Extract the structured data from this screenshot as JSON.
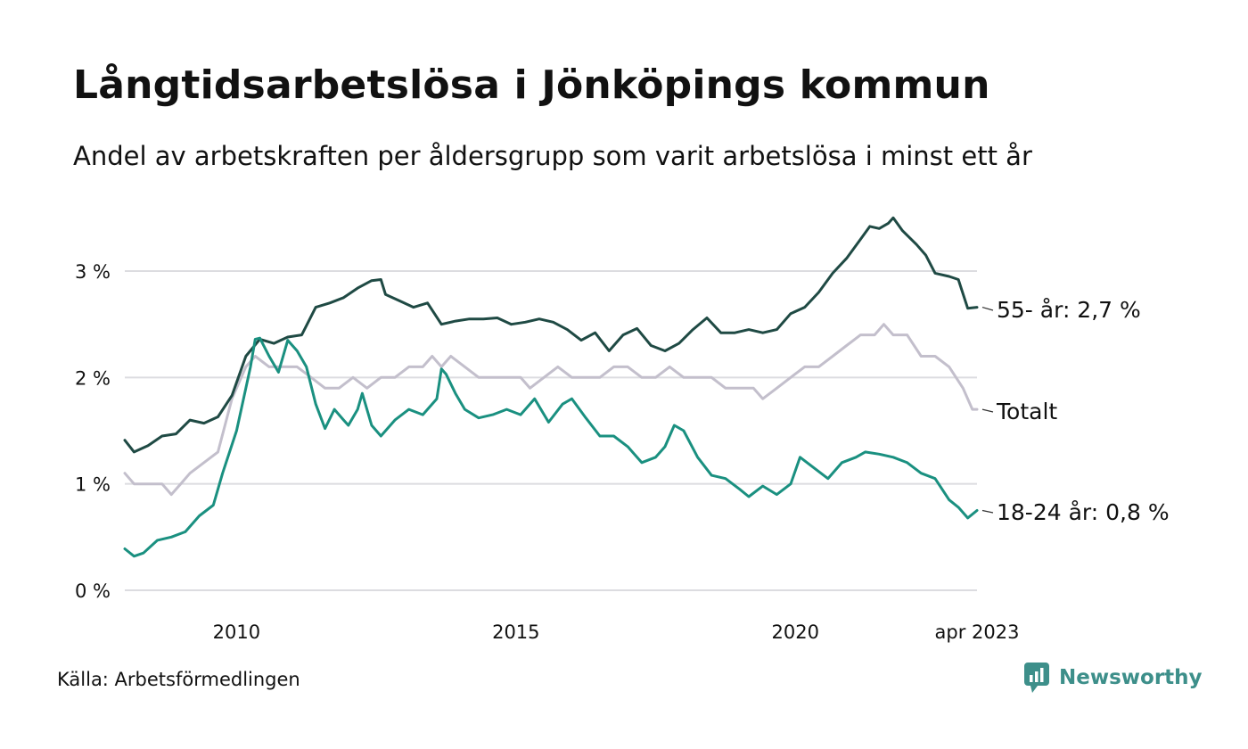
{
  "header": {
    "title": "Långtidsarbetslösa i Jönköpings kommun",
    "subtitle": "Andel av arbetskraften per åldersgrupp som varit arbetslösa i minst ett år"
  },
  "footer": {
    "source": "Källa: Arbetsförmedlingen",
    "brand": "Newsworthy",
    "brand_icon": "newsworthy-logo-icon",
    "brand_color": "#3d8f8a"
  },
  "chart_data": {
    "type": "line",
    "x_range": [
      "2008-01",
      "2023-04"
    ],
    "y_range": [
      0,
      3.6
    ],
    "y_ticks": [
      {
        "value": 0,
        "label": "0 %"
      },
      {
        "value": 1,
        "label": "1 %"
      },
      {
        "value": 2,
        "label": "2 %"
      },
      {
        "value": 3,
        "label": "3 %"
      }
    ],
    "x_ticks": [
      {
        "date": "2010-01",
        "label": "2010"
      },
      {
        "date": "2015-01",
        "label": "2015"
      },
      {
        "date": "2020-01",
        "label": "2020"
      },
      {
        "date": "2023-04",
        "label": "apr 2023"
      }
    ],
    "grid": "horizontal",
    "series": [
      {
        "name": "Totalt",
        "end_label": "Totalt",
        "color": "#c3bfcc",
        "points": [
          [
            "2008-01",
            1.1
          ],
          [
            "2008-03",
            1.0
          ],
          [
            "2008-06",
            1.0
          ],
          [
            "2008-09",
            1.0
          ],
          [
            "2008-11",
            0.9
          ],
          [
            "2009-01",
            1.0
          ],
          [
            "2009-03",
            1.1
          ],
          [
            "2009-06",
            1.2
          ],
          [
            "2009-09",
            1.3
          ],
          [
            "2009-12",
            1.8
          ],
          [
            "2010-03",
            2.1
          ],
          [
            "2010-05",
            2.2
          ],
          [
            "2010-08",
            2.1
          ],
          [
            "2010-11",
            2.1
          ],
          [
            "2011-02",
            2.1
          ],
          [
            "2011-05",
            2.0
          ],
          [
            "2011-08",
            1.9
          ],
          [
            "2011-11",
            1.9
          ],
          [
            "2012-02",
            2.0
          ],
          [
            "2012-05",
            1.9
          ],
          [
            "2012-08",
            2.0
          ],
          [
            "2012-11",
            2.0
          ],
          [
            "2013-02",
            2.1
          ],
          [
            "2013-05",
            2.1
          ],
          [
            "2013-07",
            2.2
          ],
          [
            "2013-09",
            2.1
          ],
          [
            "2013-11",
            2.2
          ],
          [
            "2014-02",
            2.1
          ],
          [
            "2014-05",
            2.0
          ],
          [
            "2014-08",
            2.0
          ],
          [
            "2014-11",
            2.0
          ],
          [
            "2015-02",
            2.0
          ],
          [
            "2015-04",
            1.9
          ],
          [
            "2015-07",
            2.0
          ],
          [
            "2015-10",
            2.1
          ],
          [
            "2016-01",
            2.0
          ],
          [
            "2016-04",
            2.0
          ],
          [
            "2016-07",
            2.0
          ],
          [
            "2016-10",
            2.1
          ],
          [
            "2017-01",
            2.1
          ],
          [
            "2017-04",
            2.0
          ],
          [
            "2017-07",
            2.0
          ],
          [
            "2017-10",
            2.1
          ],
          [
            "2018-01",
            2.0
          ],
          [
            "2018-04",
            2.0
          ],
          [
            "2018-07",
            2.0
          ],
          [
            "2018-10",
            1.9
          ],
          [
            "2019-01",
            1.9
          ],
          [
            "2019-04",
            1.9
          ],
          [
            "2019-06",
            1.8
          ],
          [
            "2019-09",
            1.9
          ],
          [
            "2019-12",
            2.0
          ],
          [
            "2020-03",
            2.1
          ],
          [
            "2020-06",
            2.1
          ],
          [
            "2020-09",
            2.2
          ],
          [
            "2020-12",
            2.3
          ],
          [
            "2021-03",
            2.4
          ],
          [
            "2021-06",
            2.4
          ],
          [
            "2021-08",
            2.5
          ],
          [
            "2021-10",
            2.4
          ],
          [
            "2022-01",
            2.4
          ],
          [
            "2022-04",
            2.2
          ],
          [
            "2022-07",
            2.2
          ],
          [
            "2022-10",
            2.1
          ],
          [
            "2023-01",
            1.9
          ],
          [
            "2023-03",
            1.7
          ],
          [
            "2023-04",
            1.7
          ]
        ]
      },
      {
        "name": "55- år",
        "end_label": "55- år: 2,7 %",
        "color": "#1f4a44",
        "points": [
          [
            "2008-01",
            1.41
          ],
          [
            "2008-03",
            1.3
          ],
          [
            "2008-06",
            1.36
          ],
          [
            "2008-09",
            1.45
          ],
          [
            "2008-12",
            1.47
          ],
          [
            "2009-03",
            1.6
          ],
          [
            "2009-06",
            1.57
          ],
          [
            "2009-09",
            1.63
          ],
          [
            "2009-12",
            1.83
          ],
          [
            "2010-03",
            2.2
          ],
          [
            "2010-06",
            2.36
          ],
          [
            "2010-09",
            2.32
          ],
          [
            "2010-12",
            2.38
          ],
          [
            "2011-03",
            2.4
          ],
          [
            "2011-06",
            2.66
          ],
          [
            "2011-09",
            2.7
          ],
          [
            "2011-12",
            2.75
          ],
          [
            "2012-03",
            2.84
          ],
          [
            "2012-06",
            2.91
          ],
          [
            "2012-08",
            2.92
          ],
          [
            "2012-09",
            2.78
          ],
          [
            "2012-12",
            2.72
          ],
          [
            "2013-03",
            2.66
          ],
          [
            "2013-06",
            2.7
          ],
          [
            "2013-09",
            2.5
          ],
          [
            "2013-12",
            2.53
          ],
          [
            "2014-03",
            2.55
          ],
          [
            "2014-06",
            2.55
          ],
          [
            "2014-09",
            2.56
          ],
          [
            "2014-12",
            2.5
          ],
          [
            "2015-03",
            2.52
          ],
          [
            "2015-06",
            2.55
          ],
          [
            "2015-09",
            2.52
          ],
          [
            "2015-12",
            2.45
          ],
          [
            "2016-03",
            2.35
          ],
          [
            "2016-06",
            2.42
          ],
          [
            "2016-09",
            2.25
          ],
          [
            "2016-12",
            2.4
          ],
          [
            "2017-03",
            2.46
          ],
          [
            "2017-06",
            2.3
          ],
          [
            "2017-09",
            2.25
          ],
          [
            "2017-12",
            2.32
          ],
          [
            "2018-03",
            2.45
          ],
          [
            "2018-06",
            2.56
          ],
          [
            "2018-09",
            2.42
          ],
          [
            "2018-12",
            2.42
          ],
          [
            "2019-03",
            2.45
          ],
          [
            "2019-06",
            2.42
          ],
          [
            "2019-09",
            2.45
          ],
          [
            "2019-12",
            2.6
          ],
          [
            "2020-03",
            2.66
          ],
          [
            "2020-06",
            2.8
          ],
          [
            "2020-09",
            2.98
          ],
          [
            "2020-12",
            3.12
          ],
          [
            "2021-03",
            3.3
          ],
          [
            "2021-05",
            3.42
          ],
          [
            "2021-07",
            3.4
          ],
          [
            "2021-09",
            3.45
          ],
          [
            "2021-10",
            3.5
          ],
          [
            "2021-12",
            3.38
          ],
          [
            "2022-03",
            3.25
          ],
          [
            "2022-05",
            3.15
          ],
          [
            "2022-07",
            2.98
          ],
          [
            "2022-10",
            2.95
          ],
          [
            "2022-12",
            2.92
          ],
          [
            "2023-02",
            2.65
          ],
          [
            "2023-04",
            2.66
          ]
        ]
      },
      {
        "name": "18-24 år",
        "end_label": "18-24 år: 0,8 %",
        "color": "#1a9080",
        "points": [
          [
            "2008-01",
            0.39
          ],
          [
            "2008-03",
            0.32
          ],
          [
            "2008-05",
            0.35
          ],
          [
            "2008-08",
            0.47
          ],
          [
            "2008-11",
            0.5
          ],
          [
            "2009-02",
            0.55
          ],
          [
            "2009-05",
            0.7
          ],
          [
            "2009-08",
            0.8
          ],
          [
            "2009-10",
            1.1
          ],
          [
            "2010-01",
            1.5
          ],
          [
            "2010-04",
            2.1
          ],
          [
            "2010-05",
            2.36
          ],
          [
            "2010-06",
            2.37
          ],
          [
            "2010-08",
            2.2
          ],
          [
            "2010-10",
            2.05
          ],
          [
            "2010-12",
            2.35
          ],
          [
            "2011-02",
            2.25
          ],
          [
            "2011-04",
            2.1
          ],
          [
            "2011-06",
            1.75
          ],
          [
            "2011-08",
            1.52
          ],
          [
            "2011-10",
            1.7
          ],
          [
            "2011-12",
            1.6
          ],
          [
            "2012-01",
            1.55
          ],
          [
            "2012-03",
            1.7
          ],
          [
            "2012-04",
            1.85
          ],
          [
            "2012-06",
            1.55
          ],
          [
            "2012-08",
            1.45
          ],
          [
            "2012-11",
            1.6
          ],
          [
            "2013-02",
            1.7
          ],
          [
            "2013-05",
            1.65
          ],
          [
            "2013-08",
            1.8
          ],
          [
            "2013-09",
            2.08
          ],
          [
            "2013-10",
            2.03
          ],
          [
            "2013-12",
            1.85
          ],
          [
            "2014-02",
            1.7
          ],
          [
            "2014-05",
            1.62
          ],
          [
            "2014-08",
            1.65
          ],
          [
            "2014-11",
            1.7
          ],
          [
            "2015-02",
            1.65
          ],
          [
            "2015-05",
            1.8
          ],
          [
            "2015-08",
            1.58
          ],
          [
            "2015-11",
            1.75
          ],
          [
            "2016-01",
            1.8
          ],
          [
            "2016-04",
            1.62
          ],
          [
            "2016-07",
            1.45
          ],
          [
            "2016-10",
            1.45
          ],
          [
            "2017-01",
            1.35
          ],
          [
            "2017-04",
            1.2
          ],
          [
            "2017-07",
            1.25
          ],
          [
            "2017-09",
            1.35
          ],
          [
            "2017-11",
            1.55
          ],
          [
            "2018-01",
            1.5
          ],
          [
            "2018-04",
            1.25
          ],
          [
            "2018-07",
            1.08
          ],
          [
            "2018-10",
            1.05
          ],
          [
            "2019-01",
            0.95
          ],
          [
            "2019-03",
            0.88
          ],
          [
            "2019-06",
            0.98
          ],
          [
            "2019-09",
            0.9
          ],
          [
            "2019-12",
            1.0
          ],
          [
            "2020-02",
            1.25
          ],
          [
            "2020-05",
            1.15
          ],
          [
            "2020-08",
            1.05
          ],
          [
            "2020-11",
            1.2
          ],
          [
            "2021-02",
            1.25
          ],
          [
            "2021-04",
            1.3
          ],
          [
            "2021-07",
            1.28
          ],
          [
            "2021-10",
            1.25
          ],
          [
            "2022-01",
            1.2
          ],
          [
            "2022-04",
            1.1
          ],
          [
            "2022-07",
            1.05
          ],
          [
            "2022-10",
            0.85
          ],
          [
            "2022-12",
            0.78
          ],
          [
            "2023-02",
            0.68
          ],
          [
            "2023-04",
            0.75
          ]
        ]
      }
    ]
  }
}
